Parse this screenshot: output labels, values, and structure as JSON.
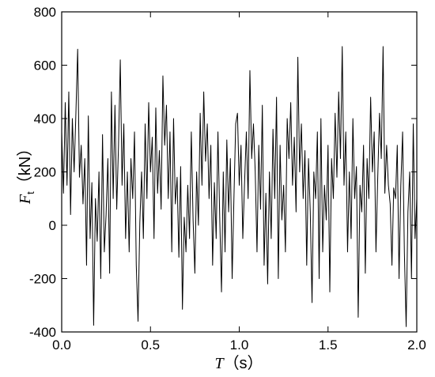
{
  "chart_data": {
    "type": "line",
    "xlabel": "T",
    "xlabel_unit": "（s）",
    "ylabel": "F",
    "ylabel_sub": "t",
    "ylabel_unit": "（kN）",
    "xlim": [
      0,
      2
    ],
    "ylim": [
      -400,
      800
    ],
    "xticks": [
      {
        "value": 0,
        "label": "0.0"
      },
      0.5,
      {
        "value": 1,
        "label": "1.0"
      },
      1.5,
      {
        "value": 2,
        "label": "2.0"
      }
    ],
    "yticks": [
      -400,
      -200,
      0,
      200,
      400,
      600,
      800
    ],
    "grid": false,
    "series": [
      {
        "name": "Ft",
        "color": "#000000",
        "x": [
          0,
          0.01,
          0.02,
          0.03,
          0.04,
          0.05,
          0.06,
          0.07,
          0.08,
          0.09,
          0.1,
          0.11,
          0.12,
          0.13,
          0.14,
          0.15,
          0.16,
          0.17,
          0.18,
          0.19,
          0.2,
          0.21,
          0.22,
          0.23,
          0.24,
          0.25,
          0.26,
          0.27,
          0.28,
          0.29,
          0.3,
          0.31,
          0.32,
          0.33,
          0.34,
          0.35,
          0.36,
          0.37,
          0.38,
          0.39,
          0.4,
          0.41,
          0.42,
          0.43,
          0.44,
          0.45,
          0.46,
          0.47,
          0.48,
          0.49,
          0.5,
          0.51,
          0.52,
          0.53,
          0.54,
          0.55,
          0.56,
          0.57,
          0.58,
          0.59,
          0.6,
          0.61,
          0.62,
          0.63,
          0.64,
          0.65,
          0.66,
          0.67,
          0.68,
          0.69,
          0.7,
          0.71,
          0.72,
          0.73,
          0.74,
          0.75,
          0.76,
          0.77,
          0.78,
          0.79,
          0.8,
          0.81,
          0.82,
          0.83,
          0.84,
          0.85,
          0.86,
          0.87,
          0.88,
          0.89,
          0.9,
          0.91,
          0.92,
          0.93,
          0.94,
          0.95,
          0.96,
          0.97,
          0.98,
          0.99,
          1,
          1.01,
          1.02,
          1.03,
          1.04,
          1.05,
          1.06,
          1.07,
          1.08,
          1.09,
          1.1,
          1.11,
          1.12,
          1.13,
          1.14,
          1.15,
          1.16,
          1.17,
          1.18,
          1.19,
          1.2,
          1.21,
          1.22,
          1.23,
          1.24,
          1.25,
          1.26,
          1.27,
          1.28,
          1.29,
          1.3,
          1.31,
          1.32,
          1.33,
          1.34,
          1.35,
          1.36,
          1.37,
          1.38,
          1.39,
          1.4,
          1.41,
          1.42,
          1.43,
          1.44,
          1.45,
          1.46,
          1.47,
          1.48,
          1.49,
          1.5,
          1.51,
          1.52,
          1.53,
          1.54,
          1.55,
          1.56,
          1.57,
          1.58,
          1.59,
          1.6,
          1.61,
          1.62,
          1.63,
          1.64,
          1.65,
          1.66,
          1.67,
          1.68,
          1.69,
          1.7,
          1.71,
          1.72,
          1.73,
          1.74,
          1.75,
          1.76,
          1.77,
          1.78,
          1.79,
          1.8,
          1.81,
          1.82,
          1.83,
          1.84,
          1.85,
          1.86,
          1.87,
          1.88,
          1.89,
          1.9,
          1.91,
          1.92,
          1.93,
          1.94,
          1.95,
          1.96,
          1.97,
          1.98,
          1.99,
          2
        ],
        "values": [
          350,
          120,
          460,
          150,
          500,
          40,
          400,
          200,
          420,
          660,
          180,
          300,
          80,
          250,
          -150,
          410,
          -50,
          160,
          -375,
          100,
          -60,
          200,
          -200,
          340,
          -100,
          40,
          250,
          -180,
          500,
          100,
          450,
          60,
          300,
          620,
          150,
          380,
          -50,
          200,
          -100,
          250,
          100,
          350,
          -150,
          -360,
          10,
          200,
          -50,
          380,
          100,
          460,
          200,
          330,
          -50,
          440,
          120,
          280,
          60,
          560,
          300,
          450,
          100,
          350,
          -100,
          400,
          80,
          180,
          -120,
          220,
          -315,
          30,
          -100,
          150,
          -50,
          350,
          20,
          -180,
          200,
          0,
          420,
          150,
          500,
          240,
          380,
          100,
          300,
          -150,
          160,
          -50,
          350,
          30,
          -250,
          200,
          -100,
          320,
          50,
          250,
          -200,
          100,
          380,
          420,
          150,
          300,
          -50,
          160,
          350,
          100,
          580,
          250,
          380,
          200,
          -100,
          300,
          60,
          450,
          -150,
          120,
          -220,
          200,
          -50,
          360,
          100,
          480,
          -200,
          300,
          20,
          150,
          -100,
          400,
          250,
          460,
          150,
          330,
          50,
          630,
          200,
          380,
          100,
          280,
          -150,
          250,
          50,
          -290,
          200,
          100,
          350,
          -200,
          400,
          -100,
          150,
          20,
          300,
          -250,
          250,
          100,
          420,
          180,
          500,
          250,
          670,
          150,
          350,
          -100,
          200,
          -50,
          400,
          100,
          220,
          -345,
          150,
          50,
          300,
          -180,
          250,
          100,
          480,
          200,
          350,
          -100,
          180,
          420,
          250,
          670,
          120,
          300,
          150,
          80,
          -150,
          140,
          100,
          300,
          -200,
          150,
          350,
          -100,
          -380,
          50,
          200,
          -200,
          380,
          -50,
          100
        ]
      }
    ]
  }
}
